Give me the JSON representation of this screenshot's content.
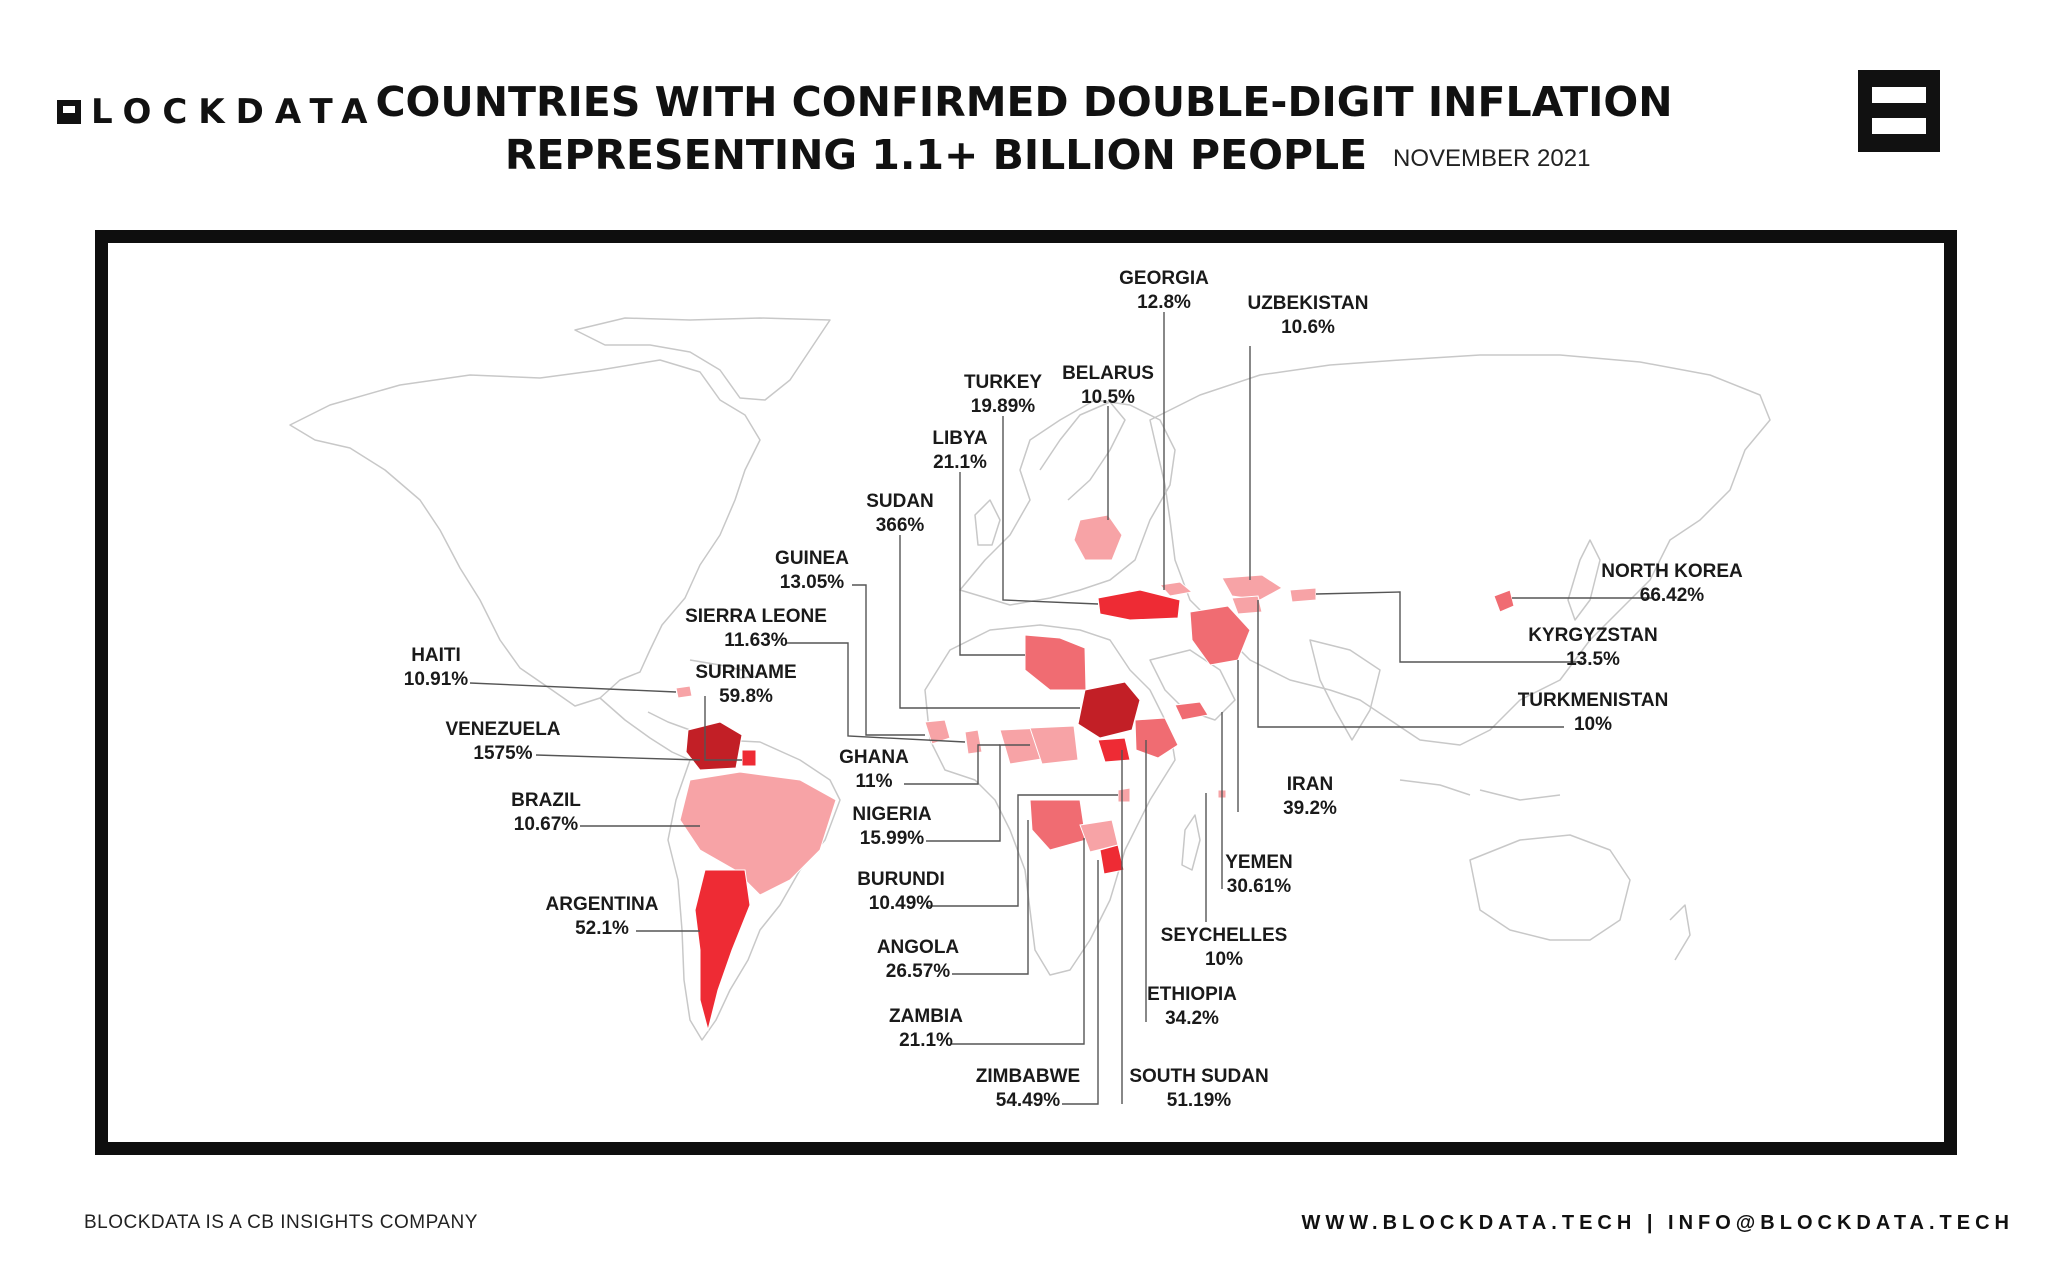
{
  "brand": {
    "logo_text": "LOCKDATA"
  },
  "header": {
    "title_line1": "COUNTRIES WITH CONFIRMED DOUBLE-DIGIT INFLATION",
    "title_line2": "REPRESENTING 1.1+ BILLION PEOPLE",
    "date": "NOVEMBER 2021"
  },
  "footer": {
    "company_note": "BLOCKDATA IS A CB INSIGHTS COMPANY",
    "website": "WWW.BLOCKDATA.TECH",
    "separator": "|",
    "email": "INFO@BLOCKDATA.TECH"
  },
  "colors": {
    "level_1": "#f7a3a6",
    "level_2": "#f06c72",
    "level_3": "#ee2b34",
    "level_4": "#c21f26",
    "land_outline": "#c8c8c8",
    "frame": "#0e0e0e"
  },
  "countries": [
    {
      "id": "georgia",
      "name": "GEORGIA",
      "rate": "12.8%",
      "level": "level_1"
    },
    {
      "id": "uzbekistan",
      "name": "UZBEKISTAN",
      "rate": "10.6%",
      "level": "level_1"
    },
    {
      "id": "turkey",
      "name": "TURKEY",
      "rate": "19.89%",
      "level": "level_3"
    },
    {
      "id": "belarus",
      "name": "BELARUS",
      "rate": "10.5%",
      "level": "level_1"
    },
    {
      "id": "libya",
      "name": "LIBYA",
      "rate": "21.1%",
      "level": "level_2"
    },
    {
      "id": "sudan",
      "name": "SUDAN",
      "rate": "366%",
      "level": "level_4"
    },
    {
      "id": "guinea",
      "name": "GUINEA",
      "rate": "13.05%",
      "level": "level_1"
    },
    {
      "id": "sierra-leone",
      "name": "SIERRA LEONE",
      "rate": "11.63%",
      "level": "level_1"
    },
    {
      "id": "haiti",
      "name": "HAITI",
      "rate": "10.91%",
      "level": "level_1"
    },
    {
      "id": "suriname",
      "name": "SURINAME",
      "rate": "59.8%",
      "level": "level_3"
    },
    {
      "id": "venezuela",
      "name": "VENEZUELA",
      "rate": "1575%",
      "level": "level_4"
    },
    {
      "id": "brazil",
      "name": "BRAZIL",
      "rate": "10.67%",
      "level": "level_1"
    },
    {
      "id": "argentina",
      "name": "ARGENTINA",
      "rate": "52.1%",
      "level": "level_3"
    },
    {
      "id": "ghana",
      "name": "GHANA",
      "rate": "11%",
      "level": "level_1"
    },
    {
      "id": "nigeria",
      "name": "NIGERIA",
      "rate": "15.99%",
      "level": "level_1"
    },
    {
      "id": "burundi",
      "name": "BURUNDI",
      "rate": "10.49%",
      "level": "level_1"
    },
    {
      "id": "angola",
      "name": "ANGOLA",
      "rate": "26.57%",
      "level": "level_2"
    },
    {
      "id": "zambia",
      "name": "ZAMBIA",
      "rate": "21.1%",
      "level": "level_1"
    },
    {
      "id": "zimbabwe",
      "name": "ZIMBABWE",
      "rate": "54.49%",
      "level": "level_3"
    },
    {
      "id": "south-sudan",
      "name": "SOUTH SUDAN",
      "rate": "51.19%",
      "level": "level_3"
    },
    {
      "id": "ethiopia",
      "name": "ETHIOPIA",
      "rate": "34.2%",
      "level": "level_2"
    },
    {
      "id": "seychelles",
      "name": "SEYCHELLES",
      "rate": "10%",
      "level": "level_1"
    },
    {
      "id": "yemen",
      "name": "YEMEN",
      "rate": "30.61%",
      "level": "level_2"
    },
    {
      "id": "iran",
      "name": "IRAN",
      "rate": "39.2%",
      "level": "level_2"
    },
    {
      "id": "turkmenistan",
      "name": "TURKMENISTAN",
      "rate": "10%",
      "level": "level_1"
    },
    {
      "id": "kyrgyzstan",
      "name": "KYRGYZSTAN",
      "rate": "13.5%",
      "level": "level_1"
    },
    {
      "id": "north-korea",
      "name": "NORTH KOREA",
      "rate": "66.42%",
      "level": "level_2"
    }
  ]
}
